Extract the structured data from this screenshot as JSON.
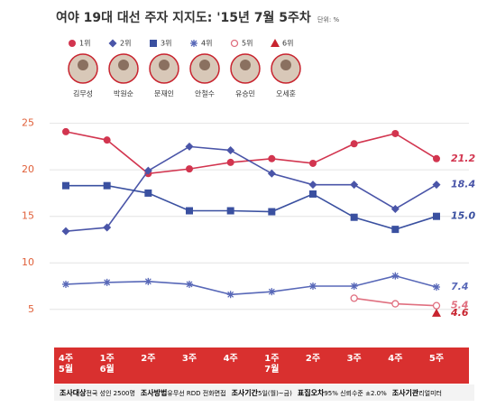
{
  "chart_data": {
    "type": "line",
    "title": "여야 19대 대선 주자 지지도: '15년 7월 5주차",
    "unit": "단위: %",
    "categories": [
      "4주\n5월",
      "1주\n6월",
      "2주",
      "3주",
      "4주",
      "1주\n7월",
      "2주",
      "3주",
      "4주",
      "5주"
    ],
    "candidates": [
      "김무성",
      "박원순",
      "문재인",
      "안철수",
      "유승민",
      "오세훈"
    ],
    "series": [
      {
        "name": "1위",
        "color": "#d2354f",
        "marker": "circle",
        "values": [
          24.1,
          23.2,
          19.6,
          20.1,
          20.8,
          21.2,
          20.7,
          22.8,
          23.9,
          21.2
        ],
        "value_labels": [
          null,
          null,
          null,
          null,
          null,
          null,
          null,
          null,
          null,
          "21.2"
        ]
      },
      {
        "name": "2위",
        "color": "#4a55a8",
        "marker": "diamond",
        "values": [
          13.4,
          13.8,
          19.9,
          22.5,
          22.1,
          19.6,
          18.4,
          18.4,
          15.8,
          18.4
        ],
        "value_labels": [
          null,
          null,
          null,
          null,
          null,
          null,
          null,
          null,
          null,
          "18.4"
        ]
      },
      {
        "name": "3위",
        "color": "#3a50a0",
        "marker": "square",
        "values": [
          18.3,
          18.3,
          17.5,
          15.6,
          15.6,
          15.5,
          17.4,
          14.9,
          13.6,
          15
        ],
        "value_labels": [
          null,
          null,
          null,
          null,
          null,
          null,
          null,
          null,
          null,
          "15.0"
        ]
      },
      {
        "name": "4위",
        "color": "#5868b8",
        "marker": "asterisk",
        "values": [
          7.7,
          7.9,
          8.0,
          7.7,
          6.6,
          6.9,
          7.5,
          7.5,
          8.6,
          7.4
        ],
        "value_labels": [
          null,
          null,
          null,
          null,
          null,
          null,
          null,
          null,
          null,
          "7.4"
        ]
      },
      {
        "name": "5위",
        "color": "#e07080",
        "marker": "open-circle",
        "values": [
          null,
          null,
          null,
          null,
          null,
          null,
          null,
          6.2,
          5.6,
          5.4
        ],
        "value_labels": [
          null,
          null,
          null,
          null,
          null,
          null,
          null,
          null,
          null,
          "5.4"
        ]
      },
      {
        "name": "6위",
        "color": "#c8242f",
        "marker": "triangle",
        "values": [
          null,
          null,
          null,
          null,
          null,
          null,
          null,
          null,
          null,
          4.6
        ],
        "value_labels": [
          null,
          null,
          null,
          null,
          null,
          null,
          null,
          null,
          null,
          "4.6"
        ]
      }
    ],
    "ylim": [
      1,
      27
    ],
    "yticks": [
      5,
      10,
      15,
      20,
      25
    ],
    "grid": true,
    "footer": [
      {
        "label": "조사대상",
        "value": "전국 성인 2500명"
      },
      {
        "label": "조사방법",
        "value": "유무선 RDD 전화면접"
      },
      {
        "label": "조사기간",
        "value": "5일(월)~금)"
      },
      {
        "label": "표집오차",
        "value": "95% 신뢰수준 ±2.0%"
      },
      {
        "label": "조사기관",
        "value": "리얼미터"
      }
    ]
  }
}
